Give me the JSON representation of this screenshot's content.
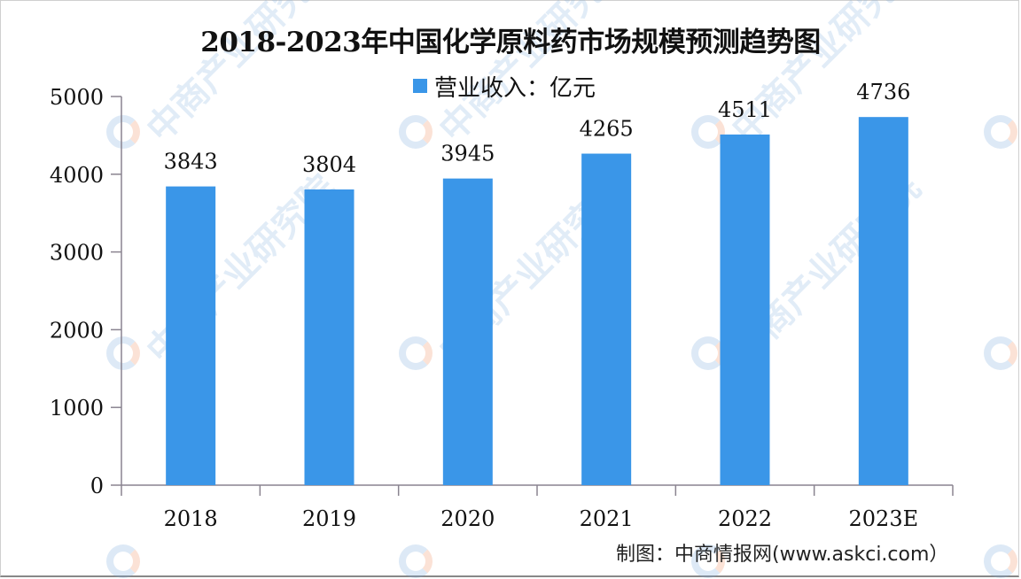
{
  "chart_data": {
    "type": "bar",
    "title": "2018-2023年中国化学原料药市场规模预测趋势图",
    "categories": [
      "2018",
      "2019",
      "2020",
      "2021",
      "2022",
      "2023E"
    ],
    "series": [
      {
        "name": "营业收入：亿元",
        "values": [
          3843,
          3804,
          3945,
          4265,
          4511,
          4736
        ],
        "color": "#3a96e8"
      }
    ],
    "xlabel": "",
    "ylabel": "",
    "ylim": [
      0,
      5000
    ],
    "yticks": [
      0,
      1000,
      2000,
      3000,
      4000,
      5000
    ],
    "legend_position": "top-center",
    "grid": false,
    "data_labels": true
  },
  "title": "2018-2023年中国化学原料药市场规模预测趋势图",
  "legend": {
    "label": "营业收入：亿元",
    "color": "#3a96e8"
  },
  "footer": {
    "source": "制图：中商情报网(www.askci.com）"
  },
  "watermark": {
    "text": "中商产业研究院"
  }
}
